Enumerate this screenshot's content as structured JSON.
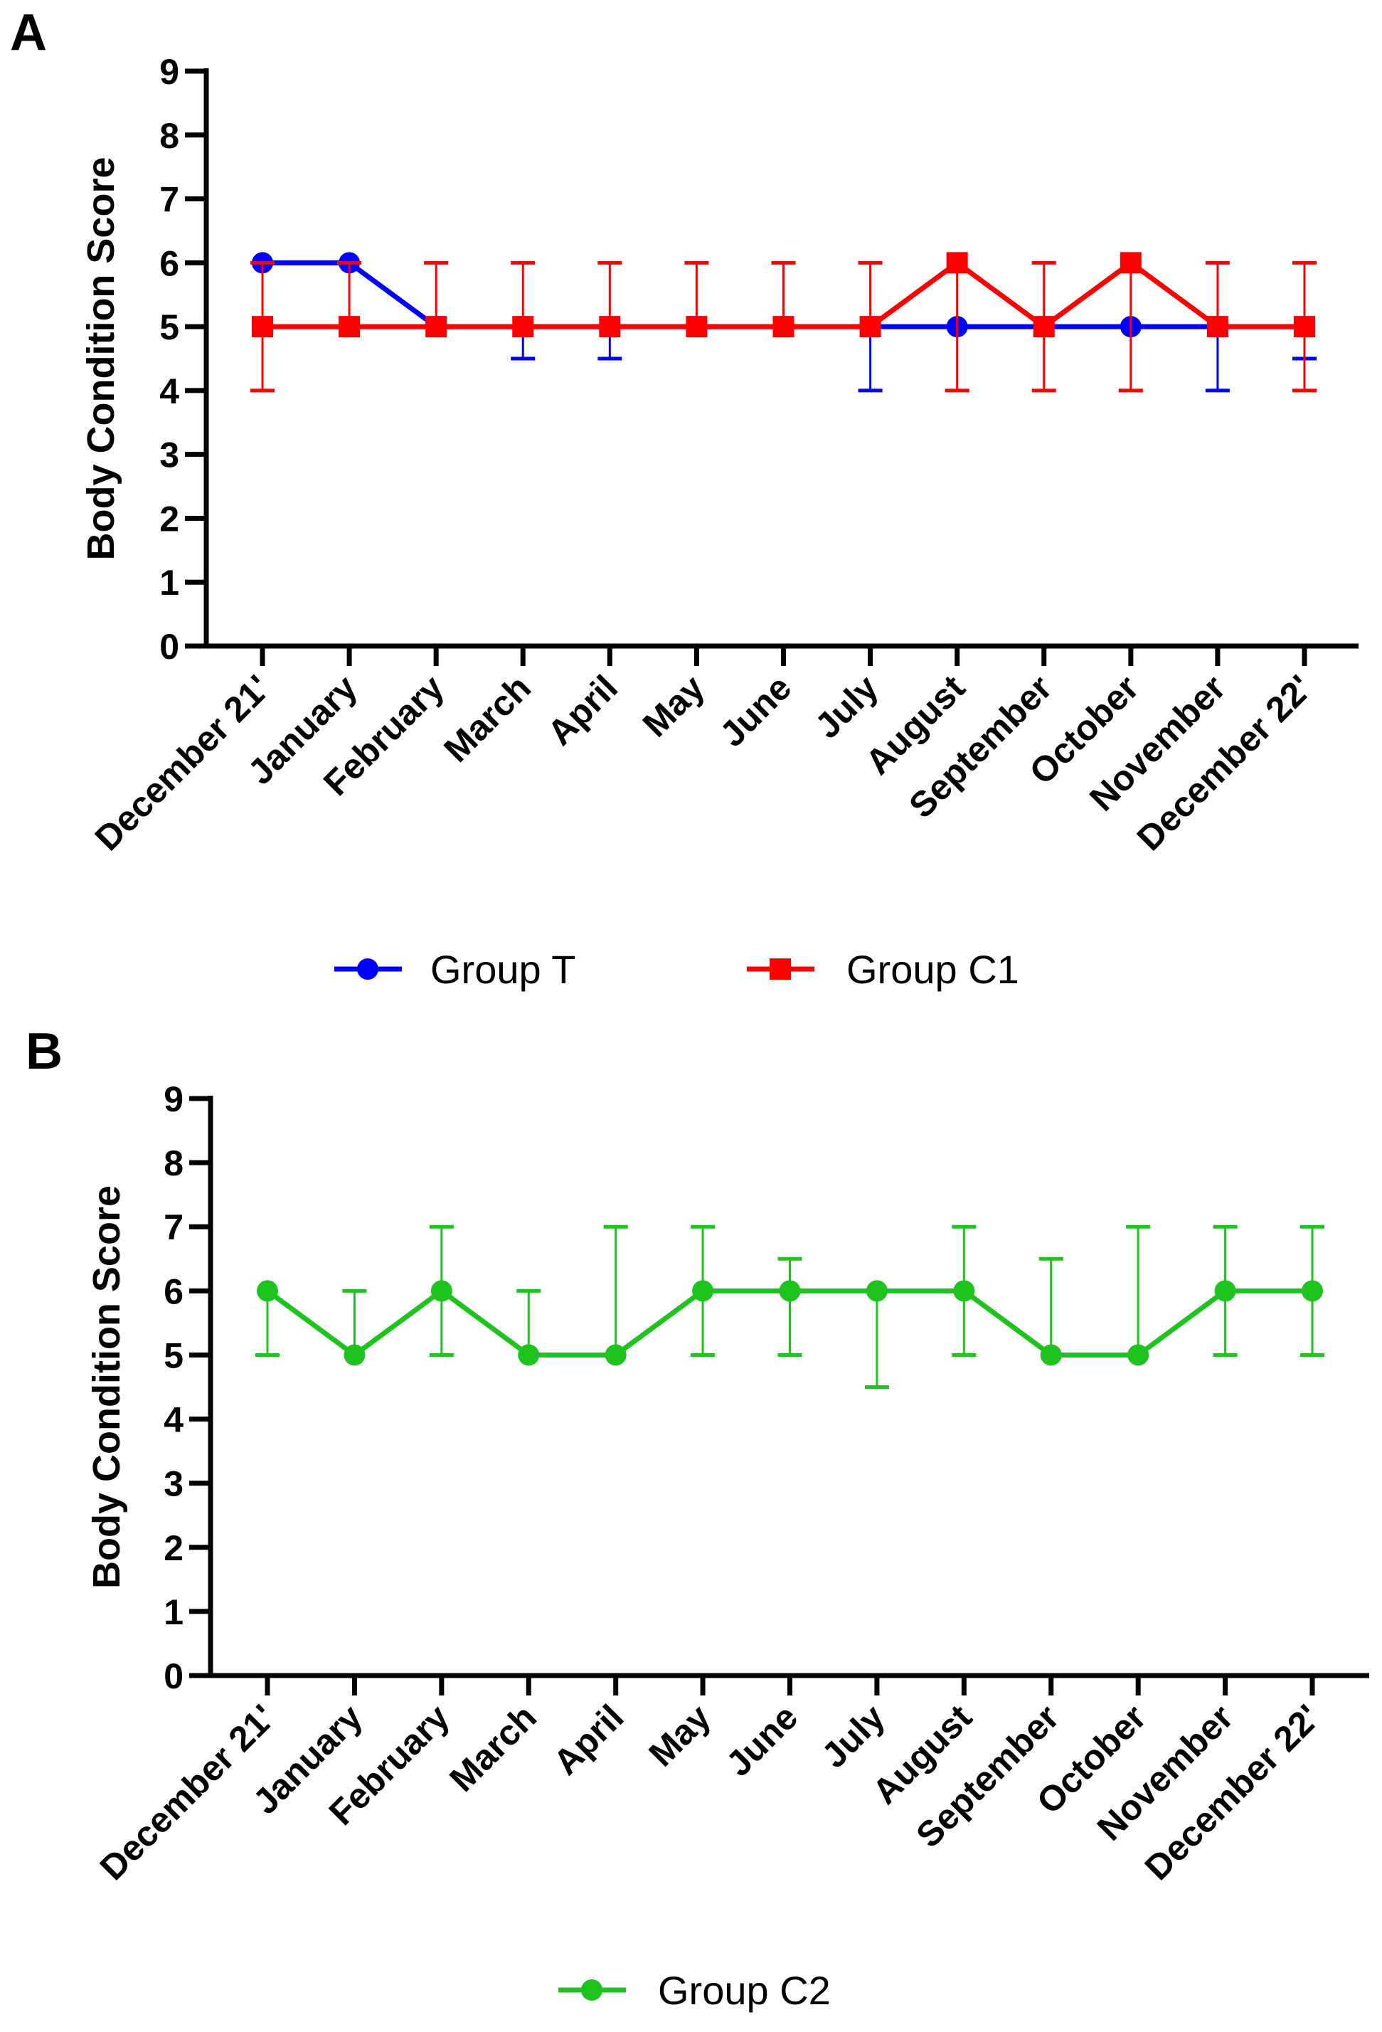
{
  "chart_data": [
    {
      "panel_label": "A",
      "type": "line",
      "ylabel": "Body Condition Score",
      "xlabel": "",
      "ylim": [
        0,
        9
      ],
      "yticks": [
        "0",
        "1",
        "2",
        "3",
        "4",
        "5",
        "6",
        "7",
        "8",
        "9"
      ],
      "categories": [
        "December 21'",
        "January",
        "February",
        "March",
        "April",
        "May",
        "June",
        "July",
        "August",
        "September",
        "October",
        "November",
        "December 22'"
      ],
      "legend_position": "bottom",
      "series": [
        {
          "name": "Group T",
          "color": "#0000ff",
          "marker": "circle",
          "values": [
            6,
            6,
            5,
            5,
            5,
            5,
            5,
            5,
            5,
            5,
            5,
            5,
            5
          ],
          "err_low": [
            6,
            6,
            5,
            4.5,
            4.5,
            5,
            5,
            4,
            5,
            5,
            5,
            4,
            4.5
          ],
          "err_high": [
            6,
            6,
            5,
            5,
            5,
            5,
            5,
            5,
            5,
            5,
            5,
            5,
            5
          ]
        },
        {
          "name": "Group C1",
          "color": "#ff0000",
          "marker": "square",
          "values": [
            5,
            5,
            5,
            5,
            5,
            5,
            5,
            5,
            6,
            5,
            6,
            5,
            5
          ],
          "err_low": [
            4,
            5,
            5,
            5,
            5,
            5,
            5,
            5,
            4,
            4,
            4,
            5,
            4
          ],
          "err_high": [
            6,
            6,
            6,
            6,
            6,
            6,
            6,
            6,
            6,
            6,
            6,
            6,
            6
          ]
        }
      ]
    },
    {
      "panel_label": "B",
      "type": "line",
      "ylabel": "Body Condition Score",
      "xlabel": "",
      "ylim": [
        0,
        9
      ],
      "yticks": [
        "0",
        "1",
        "2",
        "3",
        "4",
        "5",
        "6",
        "7",
        "8",
        "9"
      ],
      "categories": [
        "December 21'",
        "January",
        "February",
        "March",
        "April",
        "May",
        "June",
        "July",
        "August",
        "September",
        "October",
        "November",
        "December 22'"
      ],
      "legend_position": "bottom",
      "series": [
        {
          "name": "Group C2",
          "color": "#1ec31e",
          "marker": "circle",
          "values": [
            6,
            5,
            6,
            5,
            5,
            6,
            6,
            6,
            6,
            5,
            5,
            6,
            6
          ],
          "err_low": [
            5,
            5,
            5,
            5,
            5,
            5,
            5,
            4.5,
            5,
            5,
            5,
            5,
            5
          ],
          "err_high": [
            6,
            6,
            7,
            6,
            7,
            7,
            6.5,
            6,
            7,
            6.5,
            7,
            7,
            7
          ]
        }
      ]
    }
  ]
}
